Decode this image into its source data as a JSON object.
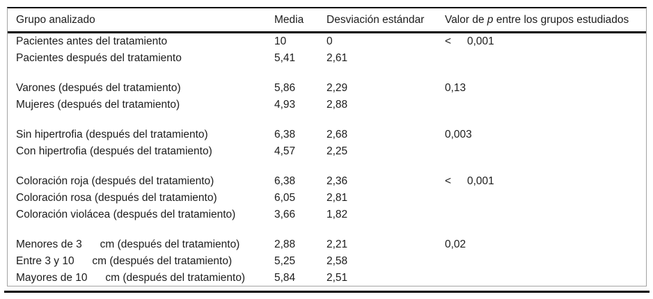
{
  "table": {
    "headers": {
      "group": "Grupo analizado",
      "media": "Media",
      "sd": "Desviación estándar",
      "p_prefix": "Valor de ",
      "p_italic": "p",
      "p_suffix": " entre los grupos estudiados"
    },
    "rows": [
      {
        "group": "Pacientes antes del tratamiento",
        "media": "10",
        "sd": "0",
        "p_lt": "<",
        "p": "0,001"
      },
      {
        "group": "Pacientes después del tratamiento",
        "media": "5,41",
        "sd": "2,61",
        "p_lt": "",
        "p": ""
      },
      {
        "spacer": true
      },
      {
        "group": "Varones (después del tratamiento)",
        "media": "5,86",
        "sd": "2,29",
        "p_lt": "",
        "p": "0,13"
      },
      {
        "group": "Mujeres (después del tratamiento)",
        "media": "4,93",
        "sd": "2,88",
        "p_lt": "",
        "p": ""
      },
      {
        "spacer": true
      },
      {
        "group": "Sin hipertrofia (después del tratamiento)",
        "media": "6,38",
        "sd": "2,68",
        "p_lt": "",
        "p": "0,003"
      },
      {
        "group": "Con hipertrofia (después del tratamiento)",
        "media": "4,57",
        "sd": "2,25",
        "p_lt": "",
        "p": ""
      },
      {
        "spacer": true
      },
      {
        "group": "Coloración roja (después del tratamiento)",
        "media": "6,38",
        "sd": "2,36",
        "p_lt": "<",
        "p": "0,001"
      },
      {
        "group": "Coloración rosa (después del tratamiento)",
        "media": "6,05",
        "sd": "2,81",
        "p_lt": "",
        "p": ""
      },
      {
        "group": "Coloración violácea (después del tratamiento)",
        "media": "3,66",
        "sd": "1,82",
        "p_lt": "",
        "p": ""
      },
      {
        "spacer": true
      },
      {
        "group": "Menores de 3      cm (después del tratamiento)",
        "media": "2,88",
        "sd": "2,21",
        "p_lt": "",
        "p": "0,02"
      },
      {
        "group": "Entre 3 y 10      cm (después del tratamiento)",
        "media": "5,25",
        "sd": "2,58",
        "p_lt": "",
        "p": ""
      },
      {
        "group": "Mayores de 10      cm (después del tratamiento)",
        "media": "5,84",
        "sd": "2,51",
        "p_lt": "",
        "p": ""
      }
    ],
    "colors": {
      "rule": "#000000",
      "side_border": "#a3a3a3",
      "text": "#1c1c1c",
      "background": "#ffffff"
    }
  }
}
